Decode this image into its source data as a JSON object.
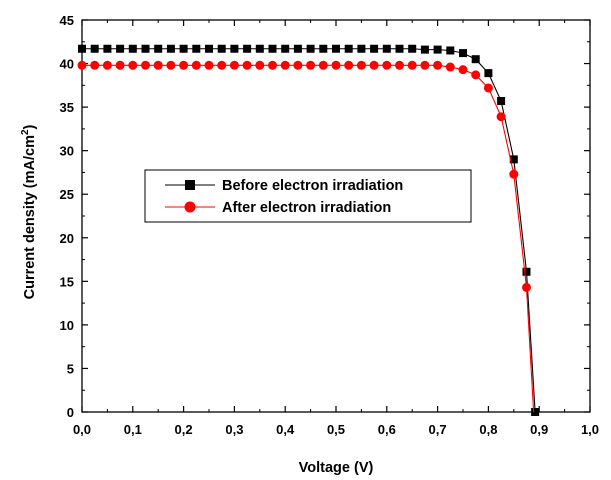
{
  "chart_data": {
    "type": "line",
    "xlabel": "Voltage (V)",
    "ylabel": {
      "main": "Current density (mA/cm",
      "sup": "2",
      "close": ")"
    },
    "xlim": [
      0,
      1.0
    ],
    "ylim": [
      0,
      45
    ],
    "xticks": [
      "0,0",
      "0,1",
      "0,2",
      "0,3",
      "0,4",
      "0,5",
      "0,6",
      "0,7",
      "0,8",
      "0,9",
      "1,0"
    ],
    "yticks": [
      "0",
      "5",
      "10",
      "15",
      "20",
      "25",
      "30",
      "35",
      "40",
      "45"
    ],
    "grid": false,
    "legend_position": "center-left",
    "series": [
      {
        "name": "Before electron irradiation",
        "marker": "square",
        "color": "#000000",
        "x": [
          0.0,
          0.025,
          0.05,
          0.075,
          0.1,
          0.125,
          0.15,
          0.175,
          0.2,
          0.225,
          0.25,
          0.275,
          0.3,
          0.325,
          0.35,
          0.375,
          0.4,
          0.425,
          0.45,
          0.475,
          0.5,
          0.525,
          0.55,
          0.575,
          0.6,
          0.625,
          0.65,
          0.675,
          0.7,
          0.725,
          0.75,
          0.775,
          0.8,
          0.825,
          0.85,
          0.875,
          0.892
        ],
        "y": [
          41.7,
          41.7,
          41.7,
          41.7,
          41.7,
          41.7,
          41.7,
          41.7,
          41.7,
          41.7,
          41.7,
          41.7,
          41.7,
          41.7,
          41.7,
          41.7,
          41.7,
          41.7,
          41.7,
          41.7,
          41.7,
          41.7,
          41.7,
          41.7,
          41.7,
          41.7,
          41.7,
          41.6,
          41.6,
          41.5,
          41.2,
          40.5,
          38.9,
          35.7,
          29.0,
          16.1,
          0
        ],
        "line_end": [
          0.892,
          0
        ]
      },
      {
        "name": "After electron irradiation",
        "marker": "circle",
        "color": "#ff0000",
        "x": [
          0.0,
          0.025,
          0.05,
          0.075,
          0.1,
          0.125,
          0.15,
          0.175,
          0.2,
          0.225,
          0.25,
          0.275,
          0.3,
          0.325,
          0.35,
          0.375,
          0.4,
          0.425,
          0.45,
          0.475,
          0.5,
          0.525,
          0.55,
          0.575,
          0.6,
          0.625,
          0.65,
          0.675,
          0.7,
          0.725,
          0.75,
          0.775,
          0.8,
          0.825,
          0.85,
          0.875
        ],
        "y": [
          39.8,
          39.8,
          39.8,
          39.8,
          39.8,
          39.8,
          39.8,
          39.8,
          39.8,
          39.8,
          39.8,
          39.8,
          39.8,
          39.8,
          39.8,
          39.8,
          39.8,
          39.8,
          39.8,
          39.8,
          39.8,
          39.8,
          39.8,
          39.8,
          39.8,
          39.8,
          39.8,
          39.8,
          39.8,
          39.6,
          39.3,
          38.7,
          37.2,
          33.9,
          27.3,
          14.3
        ],
        "line_end": [
          0.889,
          0
        ]
      }
    ]
  }
}
